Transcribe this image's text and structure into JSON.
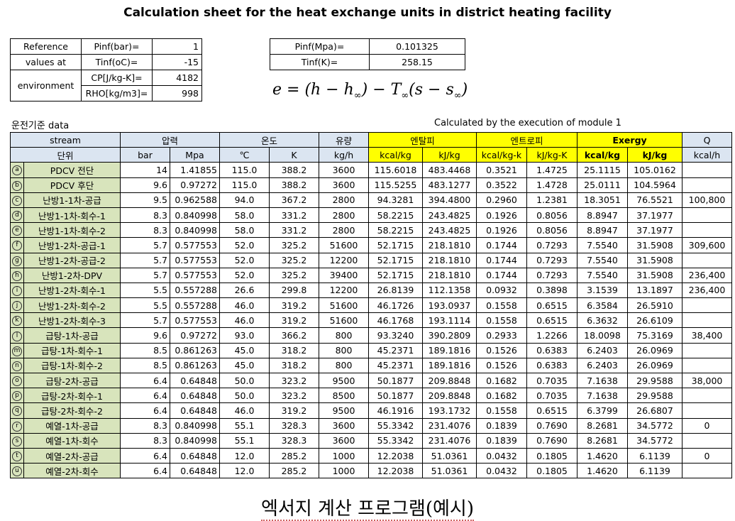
{
  "title": "Calculation sheet for the heat exchange units in district heating facility",
  "reference": {
    "label1": "Reference",
    "label2": "values at",
    "label3": "environment",
    "pinf_bar_label": "Pinf(bar)=",
    "pinf_bar": "1",
    "tinf_c_label": "Tinf(oC)=",
    "tinf_c": "-15",
    "cp_label": "CP[J/kg-K]=",
    "cp": "4182",
    "rho_label": "RHO[kg/m3]=",
    "rho": "998",
    "pinf_mpa_label": "Pinf(Mpa)=",
    "pinf_mpa": "0.101325",
    "tinf_k_label": "Tinf(K)=",
    "tinf_k": "258.15"
  },
  "equation": {
    "lhs": "e = (h − h",
    "inf1": "∞",
    "mid": ") − T",
    "inf2": "∞",
    "mid2": "(s − s",
    "inf3": "∞",
    "end": ")"
  },
  "caption_left": "운전기준 data",
  "caption_right": "Calculated by the execution of module 1",
  "headers": {
    "stream": "stream",
    "pressure": "압력",
    "temperature": "온도",
    "flow": "유량",
    "enthalpy": "엔탈피",
    "entropy": "엔트로피",
    "exergy": "Exergy",
    "q": "Q",
    "unit": "단위",
    "u_bar": "bar",
    "u_mpa": "Mpa",
    "u_c": "℃",
    "u_k": "K",
    "u_kgh": "kg/h",
    "u_kcalkg": "kcal/kg",
    "u_kjkg": "kJ/kg",
    "u_kcalkgk": "kcal/kg-k",
    "u_kjkgk": "kJ/kg-K",
    "u_ex_kcalkg": "kcal/kg",
    "u_ex_kjkg": "kJ/kg",
    "u_kcalh": "kcal/h"
  },
  "rows": [
    {
      "id": "a",
      "name": "PDCV 전단",
      "bar": "14",
      "mpa": "1.41855",
      "c": "115.0",
      "k": "388.2",
      "flow": "3600",
      "h_kcal": "115.6018",
      "h_kj": "483.4468",
      "s_kcal": "0.3521",
      "s_kj": "1.4725",
      "e_kcal": "25.1115",
      "e_kj": "105.0162",
      "q": ""
    },
    {
      "id": "b",
      "name": "PDCV 후단",
      "bar": "9.6",
      "mpa": "0.97272",
      "c": "115.0",
      "k": "388.2",
      "flow": "3600",
      "h_kcal": "115.5255",
      "h_kj": "483.1277",
      "s_kcal": "0.3522",
      "s_kj": "1.4728",
      "e_kcal": "25.0111",
      "e_kj": "104.5964",
      "q": ""
    },
    {
      "id": "c",
      "name": "난방1-1차-공급",
      "bar": "9.5",
      "mpa": "0.962588",
      "c": "94.0",
      "k": "367.2",
      "flow": "2800",
      "h_kcal": "94.3281",
      "h_kj": "394.4800",
      "s_kcal": "0.2960",
      "s_kj": "1.2381",
      "e_kcal": "18.3051",
      "e_kj": "76.5521",
      "q": "100,800"
    },
    {
      "id": "d",
      "name": "난방1-1차-회수-1",
      "bar": "8.3",
      "mpa": "0.840998",
      "c": "58.0",
      "k": "331.2",
      "flow": "2800",
      "h_kcal": "58.2215",
      "h_kj": "243.4825",
      "s_kcal": "0.1926",
      "s_kj": "0.8056",
      "e_kcal": "8.8947",
      "e_kj": "37.1977",
      "q": ""
    },
    {
      "id": "e",
      "name": "난방1-1차-회수-2",
      "bar": "8.3",
      "mpa": "0.840998",
      "c": "58.0",
      "k": "331.2",
      "flow": "2800",
      "h_kcal": "58.2215",
      "h_kj": "243.4825",
      "s_kcal": "0.1926",
      "s_kj": "0.8056",
      "e_kcal": "8.8947",
      "e_kj": "37.1977",
      "q": ""
    },
    {
      "id": "f",
      "name": "난방1-2차-공급-1",
      "bar": "5.7",
      "mpa": "0.577553",
      "c": "52.0",
      "k": "325.2",
      "flow": "51600",
      "h_kcal": "52.1715",
      "h_kj": "218.1810",
      "s_kcal": "0.1744",
      "s_kj": "0.7293",
      "e_kcal": "7.5540",
      "e_kj": "31.5908",
      "q": "309,600"
    },
    {
      "id": "g",
      "name": "난방1-2차-공급-2",
      "bar": "5.7",
      "mpa": "0.577553",
      "c": "52.0",
      "k": "325.2",
      "flow": "12200",
      "h_kcal": "52.1715",
      "h_kj": "218.1810",
      "s_kcal": "0.1744",
      "s_kj": "0.7293",
      "e_kcal": "7.5540",
      "e_kj": "31.5908",
      "q": ""
    },
    {
      "id": "h",
      "name": "난방1-2차-DPV",
      "bar": "5.7",
      "mpa": "0.577553",
      "c": "52.0",
      "k": "325.2",
      "flow": "39400",
      "h_kcal": "52.1715",
      "h_kj": "218.1810",
      "s_kcal": "0.1744",
      "s_kj": "0.7293",
      "e_kcal": "7.5540",
      "e_kj": "31.5908",
      "q": "236,400"
    },
    {
      "id": "i",
      "name": "난방1-2차-회수-1",
      "bar": "5.5",
      "mpa": "0.557288",
      "c": "26.6",
      "k": "299.8",
      "flow": "12200",
      "h_kcal": "26.8139",
      "h_kj": "112.1358",
      "s_kcal": "0.0932",
      "s_kj": "0.3898",
      "e_kcal": "3.1539",
      "e_kj": "13.1897",
      "q": "236,400"
    },
    {
      "id": "j",
      "name": "난방1-2차-회수-2",
      "bar": "5.5",
      "mpa": "0.557288",
      "c": "46.0",
      "k": "319.2",
      "flow": "51600",
      "h_kcal": "46.1726",
      "h_kj": "193.0937",
      "s_kcal": "0.1558",
      "s_kj": "0.6515",
      "e_kcal": "6.3584",
      "e_kj": "26.5910",
      "q": ""
    },
    {
      "id": "k",
      "name": "난방1-2차-회수-3",
      "bar": "5.7",
      "mpa": "0.577553",
      "c": "46.0",
      "k": "319.2",
      "flow": "51600",
      "h_kcal": "46.1768",
      "h_kj": "193.1114",
      "s_kcal": "0.1558",
      "s_kj": "0.6515",
      "e_kcal": "6.3632",
      "e_kj": "26.6109",
      "q": ""
    },
    {
      "id": "l",
      "name": "급탕-1차-공급",
      "bar": "9.6",
      "mpa": "0.97272",
      "c": "93.0",
      "k": "366.2",
      "flow": "800",
      "h_kcal": "93.3240",
      "h_kj": "390.2809",
      "s_kcal": "0.2933",
      "s_kj": "1.2266",
      "e_kcal": "18.0098",
      "e_kj": "75.3169",
      "q": "38,400"
    },
    {
      "id": "m",
      "name": "급탕-1차-회수-1",
      "bar": "8.5",
      "mpa": "0.861263",
      "c": "45.0",
      "k": "318.2",
      "flow": "800",
      "h_kcal": "45.2371",
      "h_kj": "189.1816",
      "s_kcal": "0.1526",
      "s_kj": "0.6383",
      "e_kcal": "6.2403",
      "e_kj": "26.0969",
      "q": ""
    },
    {
      "id": "n",
      "name": "급탕-1차-회수-2",
      "bar": "8.5",
      "mpa": "0.861263",
      "c": "45.0",
      "k": "318.2",
      "flow": "800",
      "h_kcal": "45.2371",
      "h_kj": "189.1816",
      "s_kcal": "0.1526",
      "s_kj": "0.6383",
      "e_kcal": "6.2403",
      "e_kj": "26.0969",
      "q": ""
    },
    {
      "id": "o",
      "name": "급탕-2차-공급",
      "bar": "6.4",
      "mpa": "0.64848",
      "c": "50.0",
      "k": "323.2",
      "flow": "9500",
      "h_kcal": "50.1877",
      "h_kj": "209.8848",
      "s_kcal": "0.1682",
      "s_kj": "0.7035",
      "e_kcal": "7.1638",
      "e_kj": "29.9588",
      "q": "38,000"
    },
    {
      "id": "p",
      "name": "급탕-2차-회수-1",
      "bar": "6.4",
      "mpa": "0.64848",
      "c": "50.0",
      "k": "323.2",
      "flow": "8500",
      "h_kcal": "50.1877",
      "h_kj": "209.8848",
      "s_kcal": "0.1682",
      "s_kj": "0.7035",
      "e_kcal": "7.1638",
      "e_kj": "29.9588",
      "q": ""
    },
    {
      "id": "q",
      "name": "급탕-2차-회수-2",
      "bar": "6.4",
      "mpa": "0.64848",
      "c": "46.0",
      "k": "319.2",
      "flow": "9500",
      "h_kcal": "46.1916",
      "h_kj": "193.1732",
      "s_kcal": "0.1558",
      "s_kj": "0.6515",
      "e_kcal": "6.3799",
      "e_kj": "26.6807",
      "q": ""
    },
    {
      "id": "r",
      "name": "예열-1차-공급",
      "bar": "8.3",
      "mpa": "0.840998",
      "c": "55.1",
      "k": "328.3",
      "flow": "3600",
      "h_kcal": "55.3342",
      "h_kj": "231.4076",
      "s_kcal": "0.1839",
      "s_kj": "0.7690",
      "e_kcal": "8.2681",
      "e_kj": "34.5772",
      "q": "0"
    },
    {
      "id": "s",
      "name": "예열-1차-회수",
      "bar": "8.3",
      "mpa": "0.840998",
      "c": "55.1",
      "k": "328.3",
      "flow": "3600",
      "h_kcal": "55.3342",
      "h_kj": "231.4076",
      "s_kcal": "0.1839",
      "s_kj": "0.7690",
      "e_kcal": "8.2681",
      "e_kj": "34.5772",
      "q": ""
    },
    {
      "id": "t",
      "name": "예열-2차-공급",
      "bar": "6.4",
      "mpa": "0.64848",
      "c": "12.0",
      "k": "285.2",
      "flow": "1000",
      "h_kcal": "12.2038",
      "h_kj": "51.0361",
      "s_kcal": "0.0432",
      "s_kj": "0.1805",
      "e_kcal": "1.4620",
      "e_kj": "6.1139",
      "q": "0"
    },
    {
      "id": "u",
      "name": "예열-2차-회수",
      "bar": "6.4",
      "mpa": "0.64848",
      "c": "12.0",
      "k": "285.2",
      "flow": "1000",
      "h_kcal": "12.2038",
      "h_kj": "51.0361",
      "s_kcal": "0.0432",
      "s_kj": "0.1805",
      "e_kcal": "1.4620",
      "e_kj": "6.1139",
      "q": ""
    }
  ],
  "footer_text": "엑서지 계산 프로그램(예시)",
  "colors": {
    "header_blue": "#dbe5f1",
    "header_yellow": "#ffff00",
    "name_green": "#d8e4bc"
  }
}
